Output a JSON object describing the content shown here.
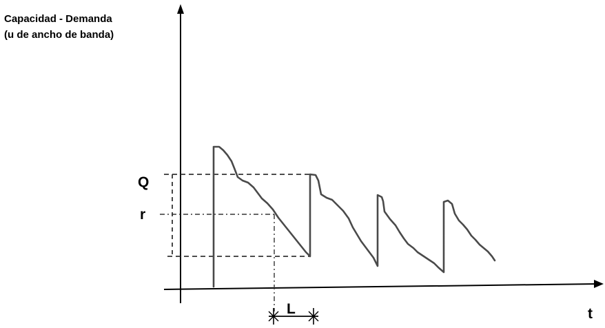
{
  "diagram": {
    "y_axis_label_line1": "Capacidad - Demanda",
    "y_axis_label_line2": "(u de ancho de banda)",
    "x_axis_label": "t",
    "q_label": "Q",
    "r_label": "r",
    "l_label": "L"
  },
  "colors": {
    "stroke": "#000000",
    "curve": "#4a4a4a",
    "guide": "#333333",
    "background": "#ffffff"
  }
}
